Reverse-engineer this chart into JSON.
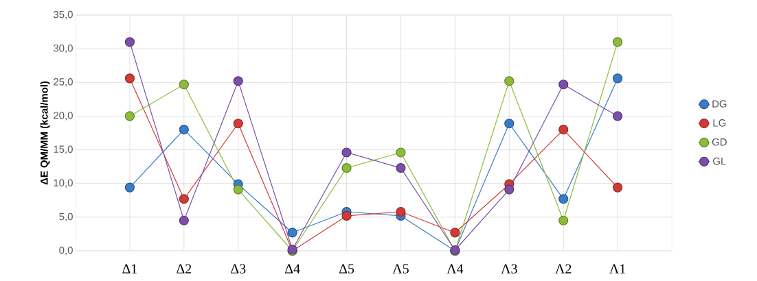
{
  "chart_data": {
    "type": "line",
    "ylabel": "ΔE QM/MM (kcal/mol)",
    "categories": [
      "Δ1",
      "Δ2",
      "Δ3",
      "Δ4",
      "Δ5",
      "Λ5",
      "Λ4",
      "Λ3",
      "Λ2",
      "Λ1"
    ],
    "series": [
      {
        "name": "DG",
        "color": "#3a7cc8",
        "values": [
          9.4,
          18.0,
          9.9,
          2.7,
          5.8,
          5.2,
          0.0,
          18.9,
          7.7,
          25.6
        ]
      },
      {
        "name": "LG",
        "color": "#d23a36",
        "values": [
          25.6,
          7.7,
          18.9,
          0.0,
          5.2,
          5.8,
          2.7,
          9.9,
          18.0,
          9.4
        ]
      },
      {
        "name": "GD",
        "color": "#8dbb3a",
        "values": [
          20.0,
          24.7,
          9.1,
          0.0,
          12.3,
          14.6,
          0.0,
          25.2,
          4.5,
          31.0
        ]
      },
      {
        "name": "GL",
        "color": "#7b4fa8",
        "values": [
          31.0,
          4.5,
          25.2,
          0.2,
          14.6,
          12.3,
          0.1,
          9.1,
          24.7,
          20.0
        ]
      }
    ],
    "ylim": [
      0,
      35
    ],
    "yticks": [
      {
        "value": 0,
        "label": "0,0"
      },
      {
        "value": 5,
        "label": "5,0"
      },
      {
        "value": 10,
        "label": "10,0"
      },
      {
        "value": 15,
        "label": "15,0"
      },
      {
        "value": 20,
        "label": "20,0"
      },
      {
        "value": 25,
        "label": "25,0"
      },
      {
        "value": 30,
        "label": "30,0"
      },
      {
        "value": 35,
        "label": "35,0"
      }
    ],
    "grid": true,
    "legend": "right",
    "marker": "circle",
    "line_style": "solid"
  }
}
